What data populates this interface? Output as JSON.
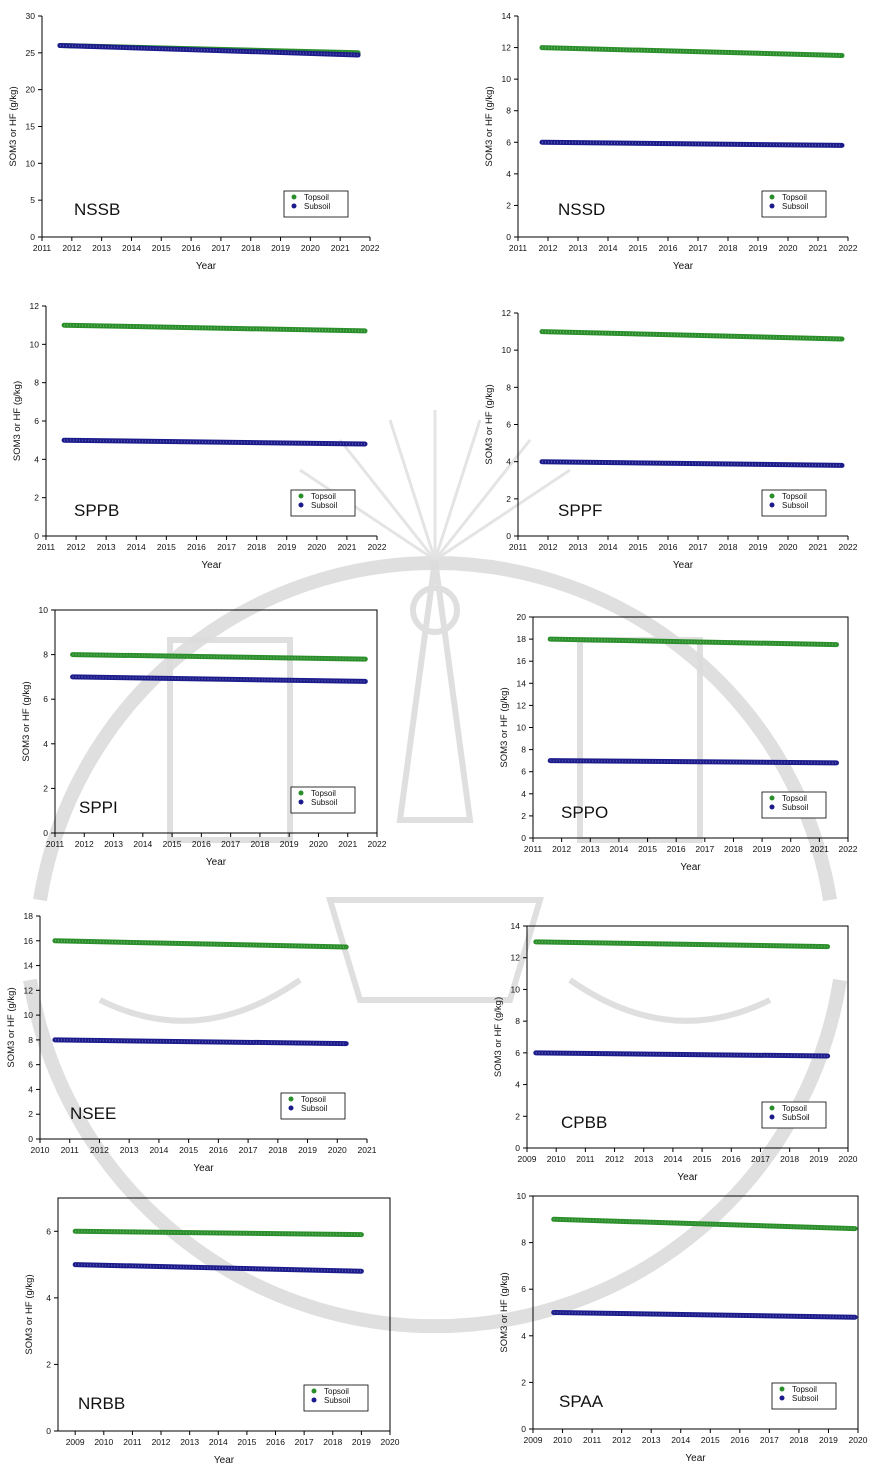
{
  "colors": {
    "topsoil": "#2a8f2a",
    "subsoil": "#1b1b8c",
    "axis": "#000000",
    "watermark": "#d6d6d6"
  },
  "chart_data": [
    {
      "type": "line",
      "site": "NSSB",
      "xlabel": "Year",
      "ylabel": "SOM3 or HF (g/kg)",
      "xlim": [
        2011,
        2022
      ],
      "ylim": [
        0,
        30
      ],
      "xticks": [
        "2011",
        "2012",
        "2013",
        "2014",
        "2015",
        "2016",
        "2017",
        "2018",
        "2019",
        "2020",
        "2021",
        "2022"
      ],
      "yticks": [
        "0",
        "5",
        "10",
        "15",
        "20",
        "25",
        "30"
      ],
      "legend": [
        "Topsoil",
        "Subsoil"
      ],
      "legend_position": "bottom-right",
      "series": [
        {
          "name": "Topsoil",
          "x": [
            2011.6,
            2021.6
          ],
          "y": [
            26.0,
            25.0
          ]
        },
        {
          "name": "Subsoil",
          "x": [
            2011.6,
            2021.6
          ],
          "y": [
            26.0,
            24.7
          ]
        }
      ]
    },
    {
      "type": "line",
      "site": "NSSD",
      "xlabel": "Year",
      "ylabel": "SOM3 or HF (g/kg)",
      "xlim": [
        2011,
        2022
      ],
      "ylim": [
        0,
        14
      ],
      "xticks": [
        "2011",
        "2012",
        "2013",
        "2014",
        "2015",
        "2016",
        "2017",
        "2018",
        "2019",
        "2020",
        "2021",
        "2022"
      ],
      "yticks": [
        "0",
        "2",
        "4",
        "6",
        "8",
        "10",
        "12",
        "14"
      ],
      "legend": [
        "Topsoil",
        "Subsoil"
      ],
      "legend_position": "bottom-right",
      "series": [
        {
          "name": "Topsoil",
          "x": [
            2011.8,
            2021.8
          ],
          "y": [
            12.0,
            11.5
          ]
        },
        {
          "name": "Subsoil",
          "x": [
            2011.8,
            2021.8
          ],
          "y": [
            6.0,
            5.8
          ]
        }
      ]
    },
    {
      "type": "line",
      "site": "SPPB",
      "xlabel": "Year",
      "ylabel": "SOM3 or HF (g/kg)",
      "xlim": [
        2011,
        2022
      ],
      "ylim": [
        0,
        12
      ],
      "xticks": [
        "2011",
        "2012",
        "2013",
        "2014",
        "2015",
        "2016",
        "2017",
        "2018",
        "2019",
        "2020",
        "2021",
        "2022"
      ],
      "yticks": [
        "0",
        "2",
        "4",
        "6",
        "8",
        "10",
        "12"
      ],
      "legend": [
        "Topsoil",
        "Subsoil"
      ],
      "legend_position": "bottom-right",
      "series": [
        {
          "name": "Topsoil",
          "x": [
            2011.6,
            2021.6
          ],
          "y": [
            11.0,
            10.7
          ]
        },
        {
          "name": "Subsoil",
          "x": [
            2011.6,
            2021.6
          ],
          "y": [
            5.0,
            4.8
          ]
        }
      ]
    },
    {
      "type": "line",
      "site": "SPPF",
      "xlabel": "Year",
      "ylabel": "SOM3 or HF (g/kg)",
      "xlim": [
        2011,
        2022
      ],
      "ylim": [
        0,
        12
      ],
      "xticks": [
        "2011",
        "2012",
        "2013",
        "2014",
        "2015",
        "2016",
        "2017",
        "2018",
        "2019",
        "2020",
        "2021",
        "2022"
      ],
      "yticks": [
        "0",
        "2",
        "4",
        "6",
        "8",
        "10",
        "12"
      ],
      "legend": [
        "Topsoil",
        "Subsoil"
      ],
      "legend_position": "bottom-right",
      "series": [
        {
          "name": "Topsoil",
          "x": [
            2011.8,
            2021.8
          ],
          "y": [
            11.0,
            10.6
          ]
        },
        {
          "name": "Subsoil",
          "x": [
            2011.8,
            2021.8
          ],
          "y": [
            4.0,
            3.8
          ]
        }
      ]
    },
    {
      "type": "line",
      "site": "SPPI",
      "xlabel": "Year",
      "ylabel": "SOM3 or HF (g/kg)",
      "xlim": [
        2011,
        2022
      ],
      "ylim": [
        0,
        10
      ],
      "xticks": [
        "2011",
        "2012",
        "2013",
        "2014",
        "2015",
        "2016",
        "2017",
        "2018",
        "2019",
        "2020",
        "2021",
        "2022"
      ],
      "yticks": [
        "0",
        "2",
        "4",
        "6",
        "8",
        "10"
      ],
      "legend": [
        "Topsoil",
        "Subsoil"
      ],
      "legend_position": "bottom-right",
      "series": [
        {
          "name": "Topsoil",
          "x": [
            2011.6,
            2021.6
          ],
          "y": [
            8.0,
            7.8
          ]
        },
        {
          "name": "Subsoil",
          "x": [
            2011.6,
            2021.6
          ],
          "y": [
            7.0,
            6.8
          ]
        }
      ]
    },
    {
      "type": "line",
      "site": "SPPO",
      "xlabel": "Year",
      "ylabel": "SOM3 or HF (g/kg)",
      "xlim": [
        2011,
        2022
      ],
      "ylim": [
        0,
        20
      ],
      "xticks": [
        "2011",
        "2012",
        "2013",
        "2014",
        "2015",
        "2016",
        "2017",
        "2018",
        "2019",
        "2020",
        "2021",
        "2022"
      ],
      "yticks": [
        "0",
        "2",
        "4",
        "6",
        "8",
        "10",
        "12",
        "14",
        "16",
        "18",
        "20"
      ],
      "legend": [
        "Topsoil",
        "Subsoil"
      ],
      "legend_position": "bottom-right",
      "series": [
        {
          "name": "Topsoil",
          "x": [
            2011.6,
            2021.6
          ],
          "y": [
            18.0,
            17.5
          ]
        },
        {
          "name": "Subsoil",
          "x": [
            2011.6,
            2021.6
          ],
          "y": [
            7.0,
            6.8
          ]
        }
      ]
    },
    {
      "type": "line",
      "site": "NSEE",
      "xlabel": "Year",
      "ylabel": "SOM3 or HF (g/kg)",
      "xlim": [
        2010,
        2021
      ],
      "ylim": [
        0,
        18
      ],
      "xticks": [
        "2010",
        "2011",
        "2012",
        "2013",
        "2014",
        "2015",
        "2016",
        "2017",
        "2018",
        "2019",
        "2020",
        "2021"
      ],
      "yticks": [
        "0",
        "2",
        "4",
        "6",
        "8",
        "10",
        "12",
        "14",
        "16",
        "18"
      ],
      "legend": [
        "Topsoil",
        "Subsoil"
      ],
      "legend_position": "bottom-right",
      "series": [
        {
          "name": "Topsoil",
          "x": [
            2010.5,
            2020.3
          ],
          "y": [
            16.0,
            15.5
          ]
        },
        {
          "name": "Subsoil",
          "x": [
            2010.5,
            2020.3
          ],
          "y": [
            8.0,
            7.7
          ]
        }
      ]
    },
    {
      "type": "line",
      "site": "CPBB",
      "xlabel": "Year",
      "ylabel": "SOM3 or HF (g/kg)",
      "xlim": [
        2009,
        2020
      ],
      "ylim": [
        0,
        14
      ],
      "xticks": [
        "2009",
        "2010",
        "2011",
        "2012",
        "2013",
        "2014",
        "2015",
        "2016",
        "2017",
        "2018",
        "2019",
        "2020"
      ],
      "yticks": [
        "0",
        "2",
        "4",
        "6",
        "8",
        "10",
        "12",
        "14"
      ],
      "legend": [
        "Topsoil",
        "SubSoil"
      ],
      "legend_position": "bottom-right",
      "series": [
        {
          "name": "Topsoil",
          "x": [
            2009.3,
            2019.3
          ],
          "y": [
            13.0,
            12.7
          ]
        },
        {
          "name": "SubSoil",
          "x": [
            2009.3,
            2019.3
          ],
          "y": [
            6.0,
            5.8
          ]
        }
      ]
    },
    {
      "type": "line",
      "site": "NRBB",
      "xlabel": "Year",
      "ylabel": "SOM3 or HF (g/kg)",
      "xlim": [
        2008.4,
        2020
      ],
      "ylim": [
        0,
        7
      ],
      "xticks": [
        "2009",
        "2010",
        "2011",
        "2012",
        "2013",
        "2014",
        "2015",
        "2016",
        "2017",
        "2018",
        "2019",
        "2020"
      ],
      "yticks": [
        "0",
        "2",
        "4",
        "6"
      ],
      "legend": [
        "Topsoil",
        "Subsoil"
      ],
      "legend_position": "bottom-right",
      "series": [
        {
          "name": "Topsoil",
          "x": [
            2009.0,
            2019.0
          ],
          "y": [
            6.0,
            5.9
          ]
        },
        {
          "name": "Subsoil",
          "x": [
            2009.0,
            2019.0
          ],
          "y": [
            5.0,
            4.8
          ]
        }
      ]
    },
    {
      "type": "line",
      "site": "SPAA",
      "xlabel": "Year",
      "ylabel": "SOM3 or HF (g/kg)",
      "xlim": [
        2009,
        2020
      ],
      "ylim": [
        0,
        10
      ],
      "xticks": [
        "2009",
        "2010",
        "2011",
        "2012",
        "2013",
        "2014",
        "2015",
        "2016",
        "2017",
        "2018",
        "2019",
        "2020"
      ],
      "yticks": [
        "0",
        "2",
        "4",
        "6",
        "8",
        "10"
      ],
      "legend": [
        "Topsoil",
        "Subsoil"
      ],
      "legend_position": "bottom-right",
      "series": [
        {
          "name": "Topsoil",
          "x": [
            2009.7,
            2019.9
          ],
          "y": [
            9.0,
            8.6
          ]
        },
        {
          "name": "Subsoil",
          "x": [
            2009.7,
            2019.9
          ],
          "y": [
            5.0,
            4.8
          ]
        }
      ]
    }
  ]
}
